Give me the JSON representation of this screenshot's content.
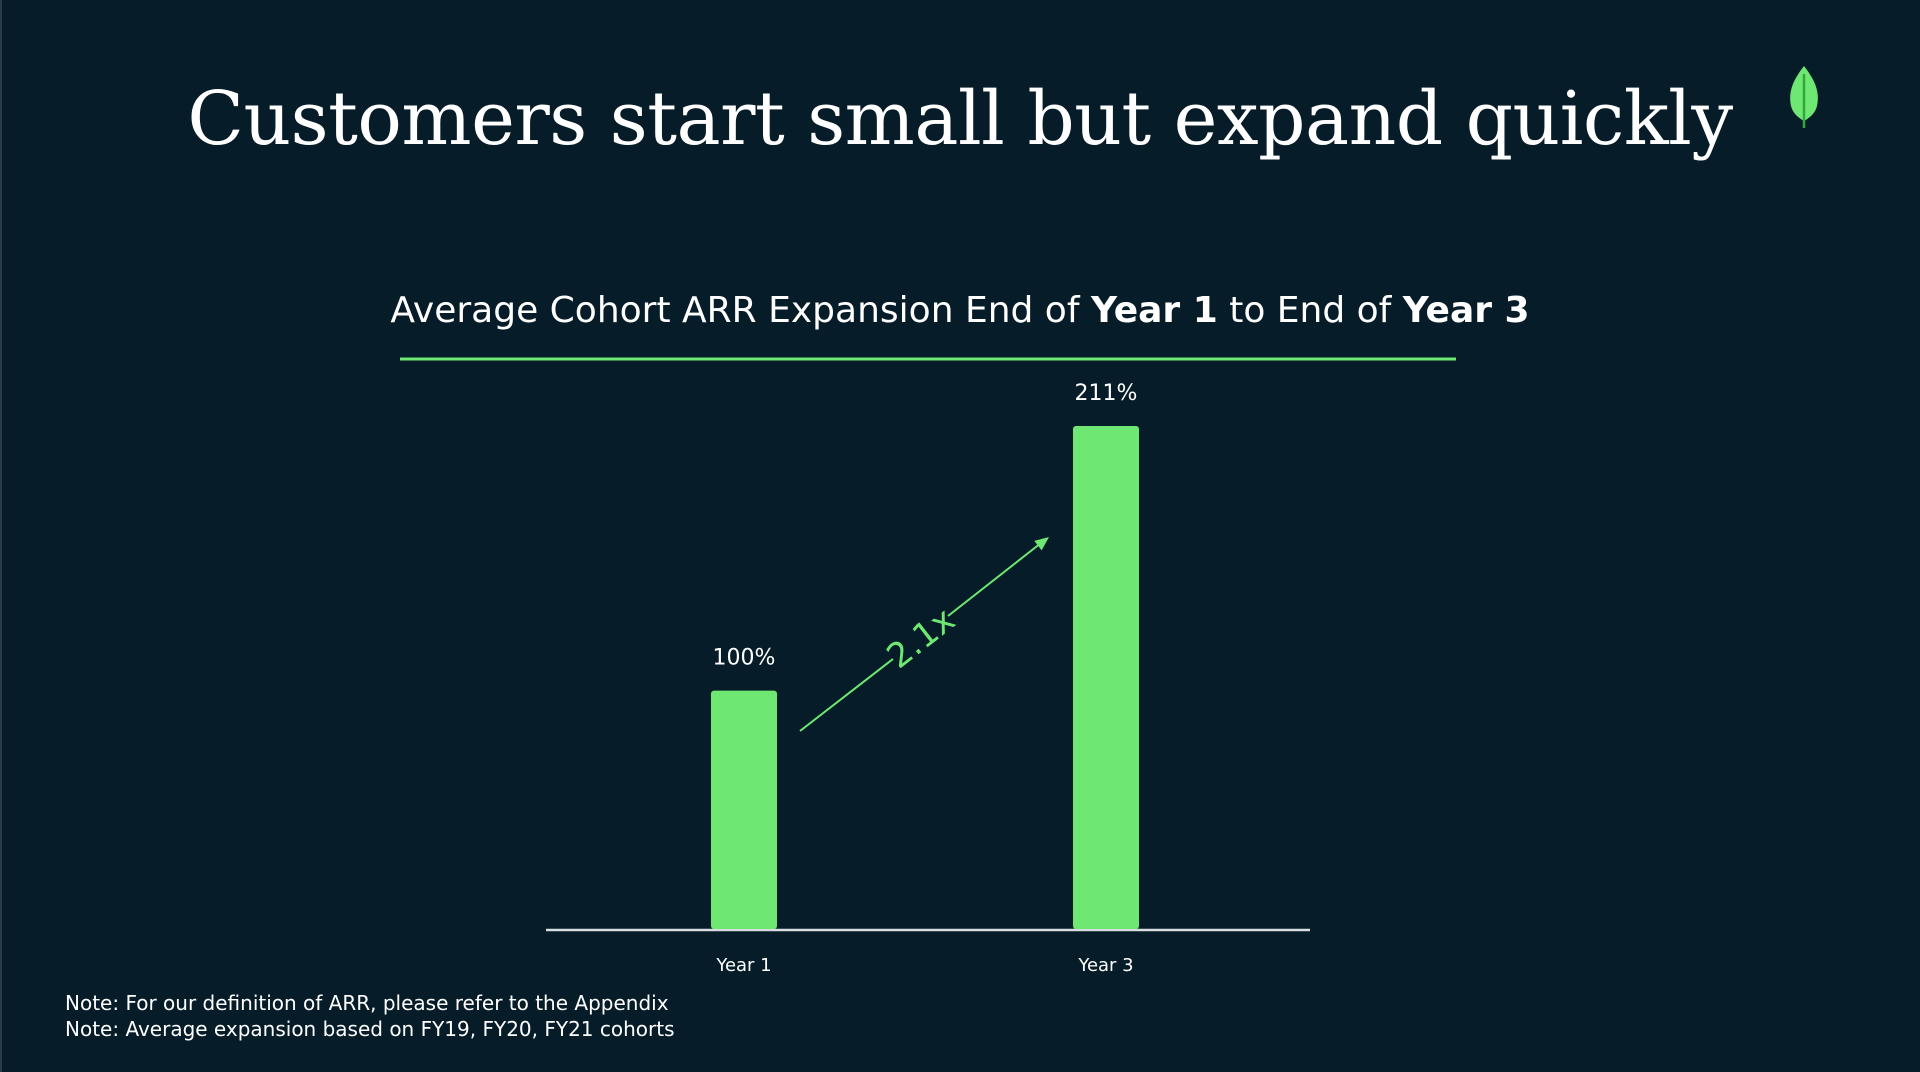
{
  "slide": {
    "title": "Customers start small but expand quickly",
    "logo_icon": "leaf-icon",
    "accent_color": "#6ee872",
    "background_color": "#061c28"
  },
  "chart_data": {
    "type": "bar",
    "title_parts": [
      "Average Cohort ARR Expansion End of ",
      "Year 1",
      " to End of ",
      "Year 3"
    ],
    "categories": [
      "Year 1",
      "Year 3"
    ],
    "values": [
      100,
      211
    ],
    "value_labels": [
      "100%",
      "211%"
    ],
    "ylim": [
      0,
      211
    ],
    "grid": false,
    "annotation": {
      "text": "2.1x",
      "from": "Year 1",
      "to": "Year 3"
    },
    "bar_color": "#6ee872"
  },
  "notes": [
    "Note: For our definition of ARR, please refer to the Appendix",
    "Note: Average expansion based on FY19, FY20, FY21 cohorts"
  ]
}
